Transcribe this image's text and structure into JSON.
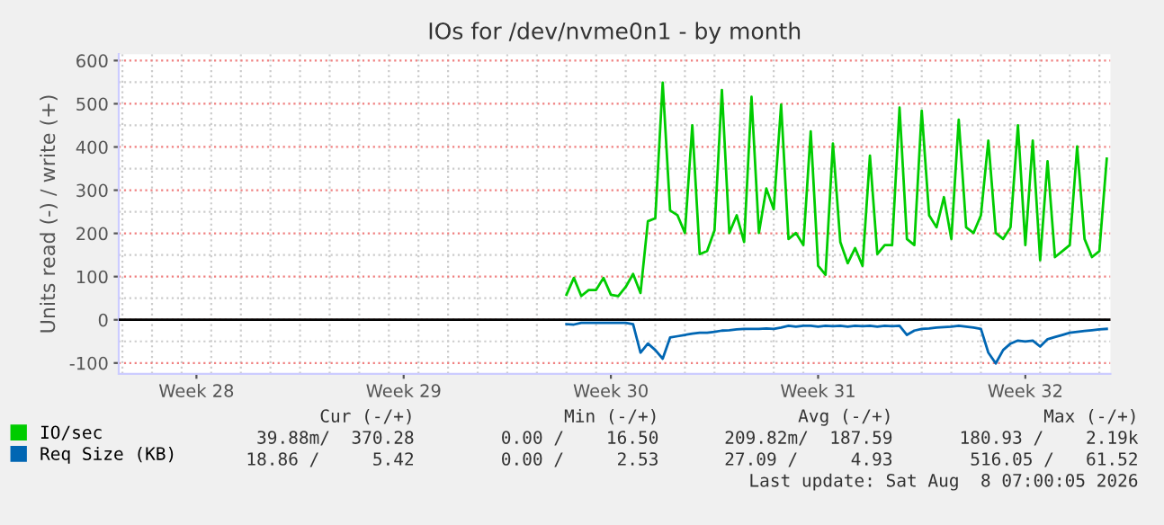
{
  "chart_data": {
    "type": "line",
    "title": "IOs for /dev/nvme0n1 - by month",
    "ylabel": "Units read (-) / write (+)",
    "categories": [
      null,
      null,
      null,
      null,
      null,
      null,
      null,
      null,
      null,
      null,
      "Week 28",
      null,
      null,
      null,
      null,
      null,
      null,
      null,
      null,
      null,
      null,
      null,
      null,
      null,
      null,
      null,
      null,
      null,
      null,
      null,
      null,
      null,
      null,
      null,
      null,
      null,
      null,
      null,
      "Week 29",
      null,
      null,
      null,
      null,
      null,
      null,
      null,
      null,
      null,
      null,
      null,
      null,
      null,
      null,
      null,
      null,
      null,
      null,
      null,
      null,
      null,
      null,
      null,
      null,
      null,
      null,
      null,
      "Week 30",
      null,
      null,
      null,
      null,
      null,
      null,
      null,
      null,
      null,
      null,
      null,
      null,
      null,
      null,
      null,
      null,
      null,
      null,
      null,
      null,
      null,
      null,
      null,
      null,
      null,
      null,
      null,
      "Week 31",
      null,
      null,
      null,
      null,
      null,
      null,
      null,
      null,
      null,
      null,
      null,
      null,
      null,
      null,
      null,
      null,
      null,
      null,
      null,
      null,
      null,
      null,
      null,
      null,
      null,
      null,
      null,
      "Week 32",
      null,
      null,
      null,
      null,
      null,
      null,
      null,
      null,
      null,
      null,
      null
    ],
    "ylim": [
      -125,
      615
    ],
    "yticks": [
      -100,
      0,
      100,
      200,
      300,
      400,
      500,
      600
    ],
    "grid": true,
    "legend": "bottom",
    "line_style": "solid",
    "marker": "none",
    "series": [
      {
        "name": "IO/sec",
        "color": "#00cc00",
        "values": [
          null,
          null,
          null,
          null,
          null,
          null,
          null,
          null,
          null,
          null,
          null,
          null,
          null,
          null,
          null,
          null,
          null,
          null,
          null,
          null,
          null,
          null,
          null,
          null,
          null,
          null,
          null,
          null,
          null,
          null,
          null,
          null,
          null,
          null,
          null,
          null,
          null,
          null,
          null,
          null,
          null,
          null,
          null,
          null,
          null,
          null,
          null,
          null,
          null,
          null,
          null,
          null,
          null,
          null,
          null,
          null,
          null,
          null,
          null,
          null,
          58,
          97,
          55,
          69,
          69,
          97,
          58,
          55,
          76,
          106,
          62,
          228,
          235,
          549,
          253,
          242,
          201,
          450,
          152,
          159,
          207,
          532,
          201,
          242,
          180,
          516,
          201,
          304,
          256,
          498,
          187,
          201,
          173,
          436,
          125,
          104,
          408,
          180,
          131,
          166,
          125,
          380,
          152,
          173,
          173,
          491,
          187,
          173,
          484,
          242,
          214,
          284,
          187,
          463,
          214,
          201,
          242,
          415,
          201,
          187,
          214,
          450,
          173,
          415,
          138,
          367,
          145,
          159,
          173,
          401,
          187,
          145,
          159,
          373
        ]
      },
      {
        "name": "Req Size (KB)",
        "color": "#0066b3",
        "values": [
          null,
          null,
          null,
          null,
          null,
          null,
          null,
          null,
          null,
          null,
          null,
          null,
          null,
          null,
          null,
          null,
          null,
          null,
          null,
          null,
          null,
          null,
          null,
          null,
          null,
          null,
          null,
          null,
          null,
          null,
          null,
          null,
          null,
          null,
          null,
          null,
          null,
          null,
          null,
          null,
          null,
          null,
          null,
          null,
          null,
          null,
          null,
          null,
          null,
          null,
          null,
          null,
          null,
          null,
          null,
          null,
          null,
          null,
          null,
          null,
          -10,
          -11,
          -7,
          -7,
          -7,
          -7,
          -7,
          -7,
          -7,
          -10,
          -76,
          -55,
          -70,
          -90,
          -41,
          -38,
          -35,
          -32,
          -30,
          -30,
          -28,
          -25,
          -24,
          -22,
          -21,
          -21,
          -21,
          -20,
          -21,
          -18,
          -14,
          -16,
          -14,
          -14,
          -16,
          -14,
          -15,
          -14,
          -16,
          -14,
          -15,
          -14,
          -16,
          -14,
          -15,
          -14,
          -35,
          -25,
          -21,
          -20,
          -18,
          -17,
          -16,
          -14,
          -16,
          -18,
          -21,
          -76,
          -101,
          -70,
          -55,
          -48,
          -50,
          -48,
          -62,
          -45,
          -40,
          -35,
          -30,
          -28,
          -26,
          -24,
          -22,
          -21
        ]
      }
    ],
    "ref_lines": [
      {
        "axis": "y",
        "value": 0,
        "color": "#000000"
      }
    ],
    "annotations": [
      "Cur (-/+)",
      "Min (-/+)",
      "Avg (-/+)",
      "Max (-/+)",
      "39.88m/  370.28",
      "0.00 /    16.50",
      "209.82m/  187.59",
      "180.93 /    2.19k",
      "18.86 /     5.42",
      "0.00 /     2.53",
      "27.09 /     4.93",
      "516.05 /   61.52",
      "Last update: Sat Aug  8 07:00:05 2026"
    ]
  }
}
